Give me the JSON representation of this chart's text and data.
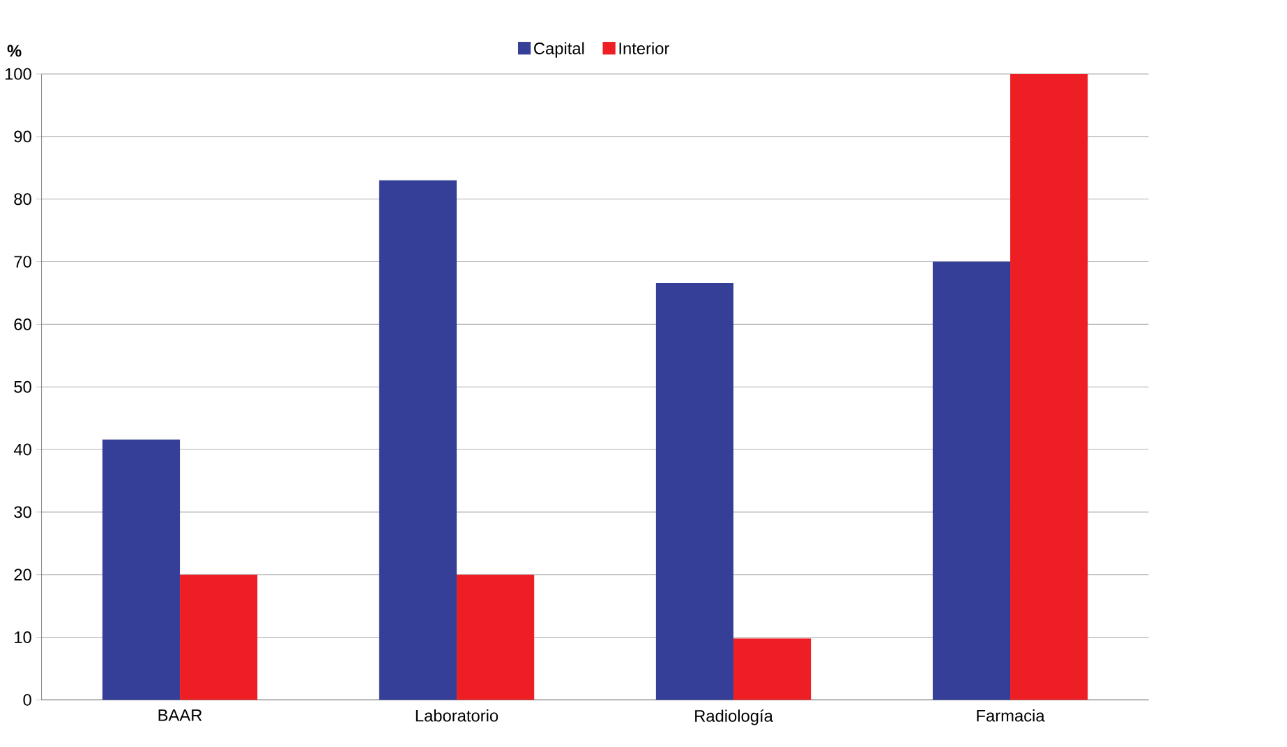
{
  "chart_data": {
    "type": "bar",
    "ylabel": "%",
    "categories": [
      "BAAR",
      "Laboratorio",
      "Radiología",
      "Farmacia"
    ],
    "series": [
      {
        "name": "Capital",
        "color": "#353f98",
        "values": [
          41.6,
          83,
          66.6,
          70
        ]
      },
      {
        "name": "Interior",
        "color": "#ed1f24",
        "values": [
          20,
          20,
          9.8,
          100
        ]
      }
    ],
    "ylim": [
      0,
      100
    ],
    "yticks": [
      0,
      10,
      20,
      30,
      40,
      50,
      60,
      70,
      80,
      90,
      100
    ],
    "grid": "y",
    "legend": "top"
  }
}
